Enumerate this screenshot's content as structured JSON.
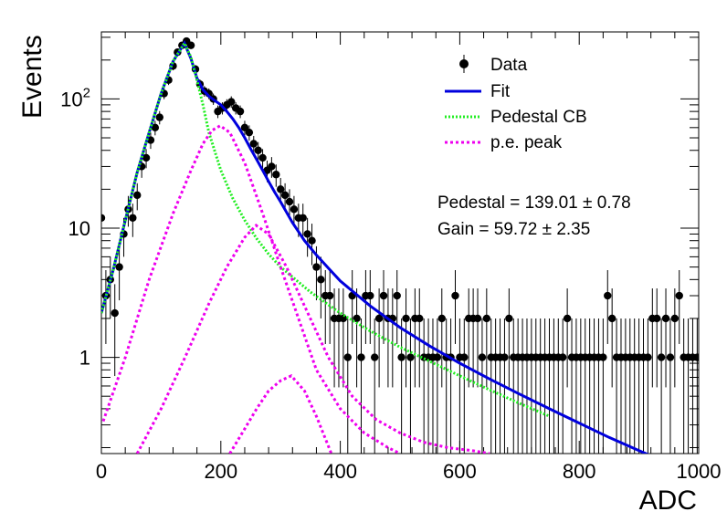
{
  "chart_data": {
    "type": "scatter",
    "xlabel": "ADC",
    "ylabel": "Events",
    "xlim": [
      0,
      1000
    ],
    "ylim": [
      0.18,
      330
    ],
    "yscale": "log",
    "x_ticks": [
      "0",
      "200",
      "400",
      "600",
      "800",
      "1000"
    ],
    "y_ticks": [
      "1",
      "10",
      "10²"
    ],
    "legend": {
      "placement": "top-right",
      "entries": [
        {
          "label": "Data",
          "style": "marker"
        },
        {
          "label": "Fit",
          "style": "line",
          "color": "#0000dd"
        },
        {
          "label": "Pedestal CB",
          "style": "dotted",
          "color": "#22ee22"
        },
        {
          "label": "p.e. peak",
          "style": "dotted",
          "color": "#ee00ee"
        }
      ]
    },
    "annotations": [
      "Pedestal = 139.01 ± 0.78",
      "Gain = 59.72 ± 2.35"
    ],
    "series": [
      {
        "name": "Data",
        "kind": "points",
        "x": [
          0,
          7.5,
          15,
          22.5,
          30,
          37.5,
          45,
          52.5,
          60,
          67.5,
          75,
          82.5,
          90,
          97.5,
          105,
          112.5,
          120,
          127.5,
          135,
          142.5,
          150,
          157.5,
          165,
          172.5,
          180,
          187.5,
          195,
          202.5,
          210,
          217.5,
          225,
          232.5,
          240,
          247.5,
          255,
          262.5,
          270,
          277.5,
          285,
          292.5,
          300,
          307.5,
          315,
          322.5,
          330,
          337.5,
          345,
          352.5,
          360,
          367.5,
          375,
          382.5,
          390,
          397.5,
          405,
          412.5,
          420,
          427.5,
          435,
          442.5,
          450,
          457.5,
          465,
          472.5,
          480,
          487.5,
          495,
          502.5,
          510,
          517.5,
          525,
          532.5,
          540,
          547.5,
          555,
          562.5,
          570,
          577.5,
          585,
          592.5,
          600,
          607.5,
          615,
          622.5,
          630,
          637.5,
          645,
          652.5,
          660,
          667.5,
          675,
          682.5,
          690,
          697.5,
          705,
          712.5,
          720,
          727.5,
          735,
          742.5,
          750,
          757.5,
          765,
          772.5,
          780,
          787.5,
          795,
          802.5,
          810,
          817.5,
          825,
          832.5,
          840,
          847.5,
          855,
          862.5,
          870,
          877.5,
          885,
          892.5,
          900,
          907.5,
          915,
          922.5,
          930,
          937.5,
          945,
          952.5,
          960,
          967.5,
          975,
          982.5,
          990,
          997.5
        ],
        "y": [
          12,
          3,
          4,
          2.2,
          5,
          9,
          14,
          12,
          18,
          30,
          35,
          48,
          60,
          72,
          110,
          140,
          180,
          230,
          260,
          280,
          260,
          170,
          130,
          115,
          110,
          100,
          80,
          85,
          90,
          95,
          85,
          80,
          60,
          55,
          45,
          40,
          35,
          28,
          30,
          26,
          20,
          18,
          16,
          14,
          12,
          12,
          9,
          8,
          5,
          4,
          3,
          3,
          2,
          2,
          2,
          1,
          3,
          2,
          1,
          3,
          3,
          1,
          2,
          3,
          2,
          2,
          3,
          1,
          2,
          1,
          2,
          2,
          1,
          1,
          1,
          1,
          2,
          1,
          1,
          3,
          1,
          1,
          2,
          2,
          2,
          1,
          2,
          1,
          1,
          1,
          1,
          2,
          1,
          1,
          1,
          1,
          1,
          1,
          1,
          1,
          1,
          1,
          1,
          1,
          2,
          1,
          1,
          1,
          1,
          1,
          1,
          1,
          1,
          3,
          2,
          1,
          1,
          1,
          1,
          1,
          1,
          1,
          1,
          2,
          2,
          1,
          2,
          1,
          2,
          3,
          1,
          1,
          1,
          1
        ]
      },
      {
        "name": "Fit",
        "kind": "line",
        "x": [
          0,
          20,
          40,
          60,
          80,
          100,
          120,
          139,
          150,
          160,
          170,
          180,
          190,
          200,
          210,
          220,
          230,
          240,
          250,
          260,
          270,
          280,
          290,
          300,
          320,
          340,
          360,
          380,
          400,
          450,
          500,
          550,
          600,
          650,
          700,
          750,
          800,
          850,
          900,
          930
        ],
        "y": [
          2.2,
          4.8,
          11.5,
          27,
          55,
          110,
          195,
          270,
          205,
          145,
          118,
          105,
          97,
          90,
          80,
          70,
          60,
          50,
          41,
          34,
          28,
          23,
          19,
          16,
          11,
          8,
          6.2,
          4.9,
          3.9,
          2.5,
          1.7,
          1.22,
          0.9,
          0.68,
          0.52,
          0.4,
          0.31,
          0.24,
          0.19,
          0.165
        ]
      },
      {
        "name": "Pedestal CB",
        "kind": "dotted",
        "x": [
          0,
          20,
          40,
          60,
          80,
          100,
          120,
          139,
          150,
          160,
          170,
          180,
          200,
          220,
          240,
          260,
          280,
          300,
          350,
          400,
          450,
          500,
          550,
          600,
          650,
          700,
          750
        ],
        "y": [
          2.2,
          4.8,
          11.5,
          27,
          55,
          110,
          195,
          270,
          210,
          140,
          90,
          55,
          28,
          17,
          11.5,
          8.3,
          6.3,
          5,
          3.2,
          2.2,
          1.6,
          1.2,
          0.93,
          0.72,
          0.56,
          0.44,
          0.35
        ]
      },
      {
        "name": "p.e. peak",
        "kind": "dotted",
        "x": [
          3,
          40,
          80,
          120,
          150,
          170,
          185,
          199,
          215,
          240,
          270,
          300,
          330,
          360,
          400,
          440,
          480,
          500
        ],
        "y": [
          0.32,
          1.0,
          4.0,
          13,
          28,
          45,
          57,
          62,
          55,
          32,
          13,
          5,
          2,
          0.8,
          0.4,
          0.26,
          0.2,
          0.18
        ]
      },
      {
        "name": "p.e. peak",
        "kind": "dotted",
        "x": [
          60,
          100,
          140,
          180,
          210,
          240,
          259,
          280,
          310,
          340,
          380,
          420,
          460,
          500,
          540,
          580,
          620,
          650
        ],
        "y": [
          0.18,
          0.4,
          1.0,
          2.6,
          5,
          8.5,
          10.5,
          9,
          5,
          2.5,
          1.0,
          0.5,
          0.33,
          0.26,
          0.22,
          0.2,
          0.19,
          0.18
        ]
      },
      {
        "name": "p.e. peak",
        "kind": "dotted",
        "x": [
          215,
          240,
          260,
          280,
          300,
          318,
          340,
          360,
          385
        ],
        "y": [
          0.18,
          0.28,
          0.4,
          0.55,
          0.66,
          0.72,
          0.55,
          0.35,
          0.18
        ]
      }
    ]
  }
}
